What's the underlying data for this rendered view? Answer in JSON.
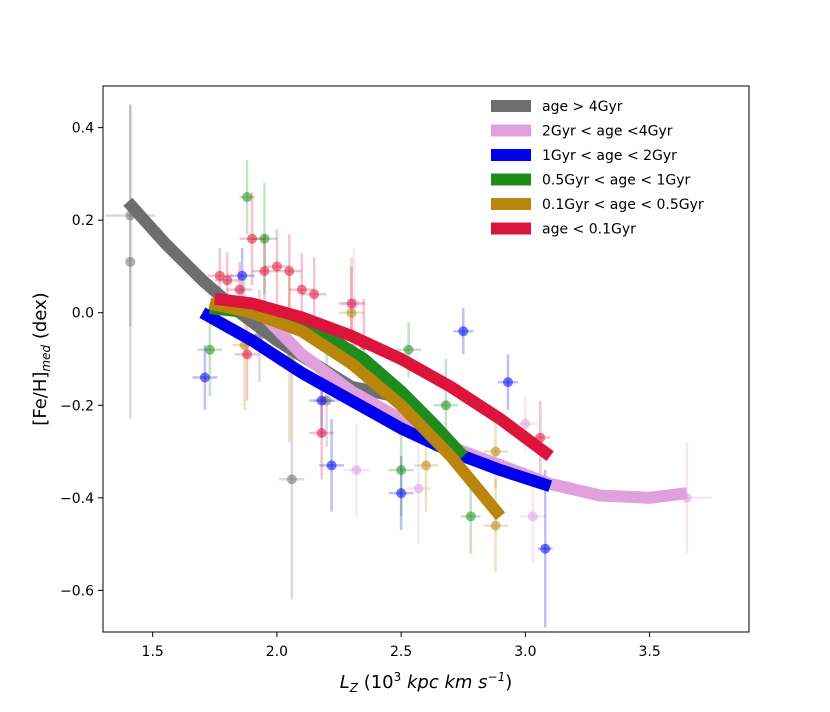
{
  "chart_data": {
    "type": "scatter",
    "title": "",
    "xlabel": "L_Z (10^3 kpc km s^-1)",
    "ylabel": "[Fe/H]_med (dex)",
    "xlim": [
      1.3,
      3.9
    ],
    "ylim": [
      -0.69,
      0.49
    ],
    "xticks": [
      1.5,
      2.0,
      2.5,
      3.0,
      3.5
    ],
    "xtick_labels": [
      "1.5",
      "2.0",
      "2.5",
      "3.0",
      "3.5"
    ],
    "yticks": [
      -0.6,
      -0.4,
      -0.2,
      0.0,
      0.2,
      0.4
    ],
    "ytick_labels": [
      "−0.6",
      "−0.4",
      "−0.2",
      "0.0",
      "0.2",
      "0.4"
    ],
    "grid": false,
    "legend_position": "top-right",
    "series": [
      {
        "name": "age > 4Gyr",
        "color": "#6e6e6e",
        "fit": {
          "x": [
            1.4,
            1.55,
            1.7,
            1.85,
            2.0,
            2.15,
            2.3,
            2.47
          ],
          "y": [
            0.24,
            0.15,
            0.07,
            0.0,
            -0.06,
            -0.11,
            -0.16,
            -0.18
          ]
        },
        "points": [
          {
            "x": 1.41,
            "y": 0.21,
            "yerr": 0.24,
            "xerr": 0.1
          },
          {
            "x": 1.41,
            "y": 0.11,
            "yerr": 0.34,
            "xerr": 0.0
          },
          {
            "x": 2.06,
            "y": -0.36,
            "yerr": 0.26,
            "xerr": 0.05
          },
          {
            "x": 2.2,
            "y": -0.19,
            "yerr": 0.1,
            "xerr": 0.05
          },
          {
            "x": 1.93,
            "y": -0.05,
            "yerr": 0.1,
            "xerr": 0.05
          }
        ]
      },
      {
        "name": "2Gyr < age <4Gyr",
        "color": "#dfa0dd",
        "fit": {
          "x": [
            1.9,
            2.1,
            2.3,
            2.5,
            2.7,
            2.9,
            3.1,
            3.3,
            3.5,
            3.65
          ],
          "y": [
            0.02,
            -0.09,
            -0.17,
            -0.23,
            -0.29,
            -0.33,
            -0.37,
            -0.395,
            -0.4,
            -0.39
          ]
        },
        "points": [
          {
            "x": 2.32,
            "y": -0.34,
            "yerr": 0.1,
            "xerr": 0.05
          },
          {
            "x": 2.31,
            "y": 0.02,
            "yerr": 0.12,
            "xerr": 0.05
          },
          {
            "x": 2.57,
            "y": -0.38,
            "yerr": 0.12,
            "xerr": 0.05
          },
          {
            "x": 3.0,
            "y": -0.24,
            "yerr": 0.06,
            "xerr": 0.05
          },
          {
            "x": 3.03,
            "y": -0.44,
            "yerr": 0.1,
            "xerr": 0.05
          },
          {
            "x": 3.65,
            "y": -0.4,
            "yerr": 0.12,
            "xerr": 0.1
          }
        ]
      },
      {
        "name": "1Gyr < age < 2Gyr",
        "color": "#0000ee",
        "fit": {
          "x": [
            1.7,
            1.9,
            2.1,
            2.3,
            2.5,
            2.7,
            2.9,
            3.1
          ],
          "y": [
            0.0,
            -0.06,
            -0.13,
            -0.19,
            -0.25,
            -0.3,
            -0.34,
            -0.375
          ]
        },
        "points": [
          {
            "x": 1.71,
            "y": -0.14,
            "yerr": 0.07,
            "xerr": 0.05
          },
          {
            "x": 2.18,
            "y": -0.19,
            "yerr": 0.08,
            "xerr": 0.05
          },
          {
            "x": 2.22,
            "y": -0.33,
            "yerr": 0.1,
            "xerr": 0.05
          },
          {
            "x": 2.5,
            "y": -0.39,
            "yerr": 0.08,
            "xerr": 0.05
          },
          {
            "x": 2.75,
            "y": -0.04,
            "yerr": 0.05,
            "xerr": 0.04
          },
          {
            "x": 2.93,
            "y": -0.15,
            "yerr": 0.06,
            "xerr": 0.04
          },
          {
            "x": 3.08,
            "y": -0.51,
            "yerr": 0.17,
            "xerr": 0.03
          },
          {
            "x": 1.86,
            "y": 0.08,
            "yerr": 0.06,
            "xerr": 0.05
          }
        ]
      },
      {
        "name": "0.5Gyr < age < 1Gyr",
        "color": "#1d8c1d",
        "fit": {
          "x": [
            1.73,
            1.9,
            2.05,
            2.2,
            2.35,
            2.5,
            2.63,
            2.75
          ],
          "y": [
            0.01,
            0.0,
            -0.02,
            -0.05,
            -0.1,
            -0.17,
            -0.24,
            -0.31
          ]
        },
        "points": [
          {
            "x": 1.88,
            "y": 0.25,
            "yerr": 0.08,
            "xerr": 0.03
          },
          {
            "x": 1.73,
            "y": -0.08,
            "yerr": 0.1,
            "xerr": 0.05
          },
          {
            "x": 2.5,
            "y": -0.34,
            "yerr": 0.1,
            "xerr": 0.05
          },
          {
            "x": 2.53,
            "y": -0.08,
            "yerr": 0.06,
            "xerr": 0.05
          },
          {
            "x": 2.78,
            "y": -0.44,
            "yerr": 0.08,
            "xerr": 0.04
          },
          {
            "x": 2.68,
            "y": -0.2,
            "yerr": 0.1,
            "xerr": 0.05
          },
          {
            "x": 1.95,
            "y": 0.16,
            "yerr": 0.12,
            "xerr": 0.05
          }
        ]
      },
      {
        "name": "0.1Gyr < age < 0.5Gyr",
        "color": "#b8860b",
        "fit": {
          "x": [
            1.73,
            1.9,
            2.1,
            2.3,
            2.5,
            2.7,
            2.9
          ],
          "y": [
            0.02,
            0.0,
            -0.04,
            -0.11,
            -0.2,
            -0.31,
            -0.44
          ]
        },
        "points": [
          {
            "x": 1.87,
            "y": -0.07,
            "yerr": 0.14,
            "xerr": 0.05
          },
          {
            "x": 2.3,
            "y": 0.0,
            "yerr": 0.12,
            "xerr": 0.05
          },
          {
            "x": 2.6,
            "y": -0.33,
            "yerr": 0.1,
            "xerr": 0.05
          },
          {
            "x": 2.88,
            "y": -0.3,
            "yerr": 0.08,
            "xerr": 0.05
          },
          {
            "x": 2.88,
            "y": -0.46,
            "yerr": 0.1,
            "xerr": 0.05
          },
          {
            "x": 2.05,
            "y": -0.1,
            "yerr": 0.18,
            "xerr": 0.05
          }
        ]
      },
      {
        "name": "age < 0.1Gyr",
        "color": "#dc143c",
        "fit": {
          "x": [
            1.75,
            1.9,
            2.1,
            2.3,
            2.5,
            2.7,
            2.9,
            3.1
          ],
          "y": [
            0.03,
            0.02,
            -0.01,
            -0.05,
            -0.1,
            -0.16,
            -0.23,
            -0.31
          ]
        },
        "points": [
          {
            "x": 1.9,
            "y": 0.16,
            "yerr": 0.1,
            "xerr": 0.05
          },
          {
            "x": 1.77,
            "y": 0.08,
            "yerr": 0.06,
            "xerr": 0.05
          },
          {
            "x": 1.8,
            "y": 0.07,
            "yerr": 0.06,
            "xerr": 0.05
          },
          {
            "x": 1.85,
            "y": 0.05,
            "yerr": 0.06,
            "xerr": 0.05
          },
          {
            "x": 2.0,
            "y": 0.1,
            "yerr": 0.08,
            "xerr": 0.05
          },
          {
            "x": 2.05,
            "y": 0.09,
            "yerr": 0.08,
            "xerr": 0.05
          },
          {
            "x": 2.1,
            "y": 0.05,
            "yerr": 0.08,
            "xerr": 0.05
          },
          {
            "x": 2.15,
            "y": 0.04,
            "yerr": 0.08,
            "xerr": 0.05
          },
          {
            "x": 1.88,
            "y": -0.09,
            "yerr": 0.1,
            "xerr": 0.05
          },
          {
            "x": 2.3,
            "y": 0.02,
            "yerr": 0.08,
            "xerr": 0.05
          },
          {
            "x": 2.35,
            "y": -0.07,
            "yerr": 0.1,
            "xerr": 0.05
          },
          {
            "x": 2.18,
            "y": -0.26,
            "yerr": 0.1,
            "xerr": 0.05
          },
          {
            "x": 3.06,
            "y": -0.27,
            "yerr": 0.08,
            "xerr": 0.04
          },
          {
            "x": 1.95,
            "y": 0.09,
            "yerr": 0.08,
            "xerr": 0.05
          }
        ]
      }
    ],
    "scatter_cloud_note": ""
  }
}
